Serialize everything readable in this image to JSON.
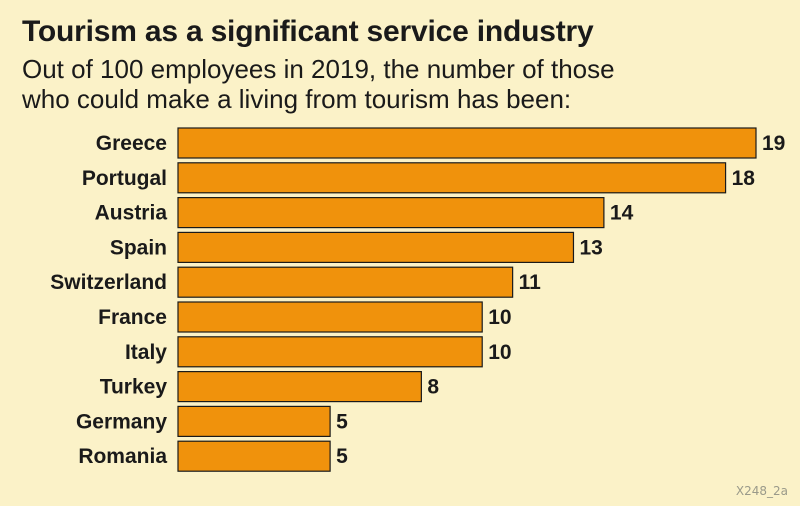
{
  "header": {
    "title": "Tourism as a significant service industry",
    "subtitle_line1": "Out of 100 employees in 2019, the number of those",
    "subtitle_line2": "who could make a living from tourism has been:"
  },
  "footer": {
    "code": "X248_2a"
  },
  "colors": {
    "bar": "#f0920c",
    "background": "#fbf2c8",
    "text": "#1a1a1a"
  },
  "chart_data": {
    "type": "bar",
    "orientation": "horizontal",
    "title": "Tourism as a significant service industry",
    "subtitle": "Out of 100 employees in 2019, the number of those who could make a living from tourism has been:",
    "categories": [
      "Greece",
      "Portugal",
      "Austria",
      "Spain",
      "Switzerland",
      "France",
      "Italy",
      "Turkey",
      "Germany",
      "Romania"
    ],
    "values": [
      19,
      18,
      14,
      13,
      11,
      10,
      10,
      8,
      5,
      5
    ],
    "value_labels": [
      "19",
      "18",
      "14",
      "13",
      "11",
      "10",
      "10",
      "8",
      "5",
      "5"
    ],
    "xlim": [
      0,
      19
    ],
    "xlabel": "",
    "ylabel": "",
    "grid": false,
    "legend": "none"
  }
}
